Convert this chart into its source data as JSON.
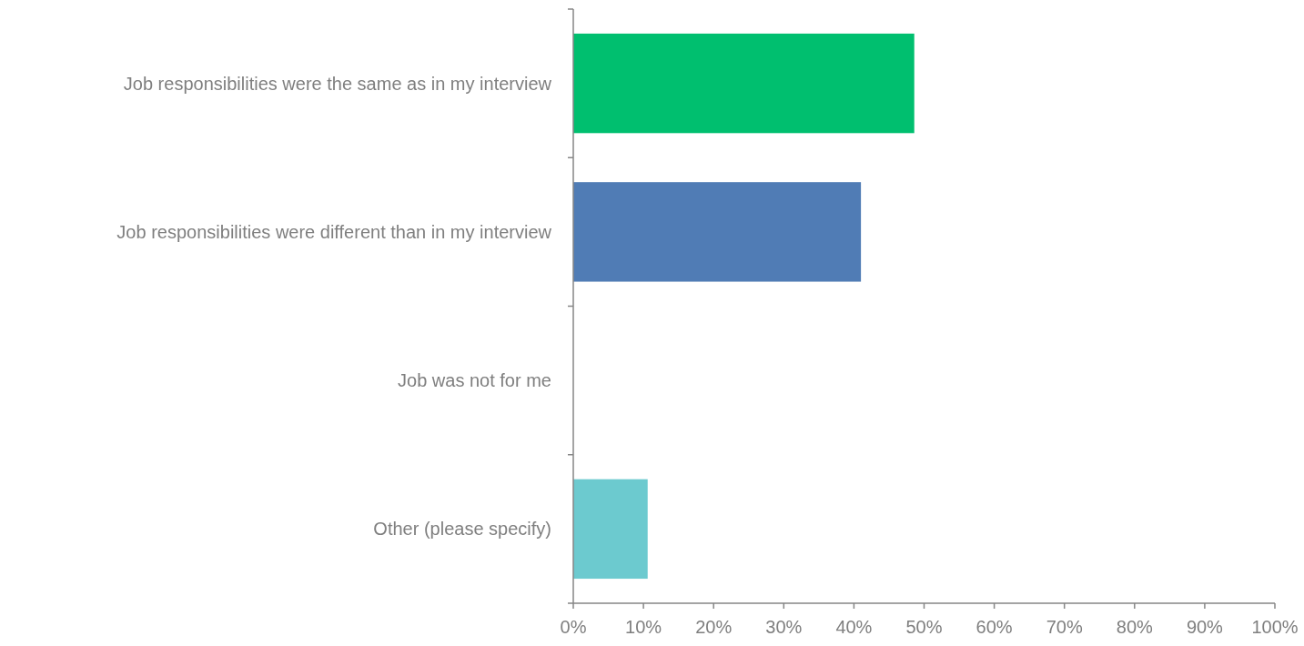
{
  "chart_data": {
    "type": "bar",
    "orientation": "horizontal",
    "categories": [
      "Job responsibilities were the same as in my interview",
      "Job responsibilities were different than in my interview",
      "Job was not for me",
      "Other (please specify)"
    ],
    "values": [
      48.6,
      41.0,
      0,
      10.6
    ],
    "colors": [
      "#00bf6f",
      "#507cb5",
      "#c0c0c0",
      "#6ccacf"
    ],
    "xlim": [
      0,
      100
    ],
    "xticks": [
      {
        "value": 0,
        "label": "0%"
      },
      {
        "value": 10,
        "label": "10%"
      },
      {
        "value": 20,
        "label": "20%"
      },
      {
        "value": 30,
        "label": "30%"
      },
      {
        "value": 40,
        "label": "40%"
      },
      {
        "value": 50,
        "label": "50%"
      },
      {
        "value": 60,
        "label": "60%"
      },
      {
        "value": 70,
        "label": "70%"
      },
      {
        "value": 80,
        "label": "80%"
      },
      {
        "value": 90,
        "label": "90%"
      },
      {
        "value": 100,
        "label": "100%"
      }
    ],
    "grid": false
  }
}
